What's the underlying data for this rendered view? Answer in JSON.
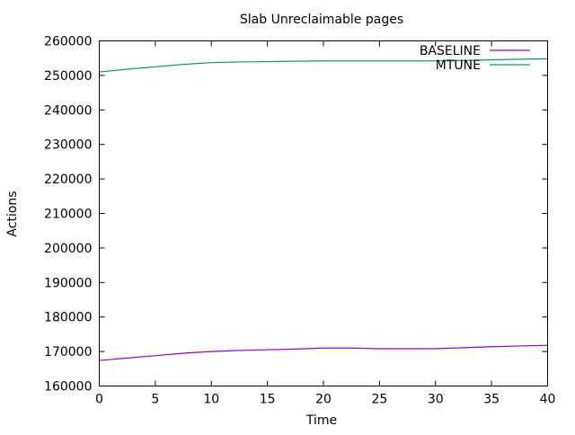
{
  "chart_data": {
    "type": "line",
    "title": "Slab Unreclaimable pages",
    "xlabel": "Time",
    "ylabel": "Actions",
    "xlim": [
      0,
      40
    ],
    "ylim": [
      160000,
      260000
    ],
    "xticks": [
      0,
      5,
      10,
      15,
      20,
      25,
      30,
      35,
      40
    ],
    "yticks": [
      160000,
      170000,
      180000,
      190000,
      200000,
      210000,
      220000,
      230000,
      240000,
      250000,
      260000
    ],
    "grid": false,
    "legend_position": "top-right",
    "x": [
      0,
      2.5,
      5,
      7.5,
      10,
      12.5,
      15,
      17.5,
      20,
      22.5,
      25,
      27.5,
      30,
      32.5,
      35,
      37.5,
      40
    ],
    "series": [
      {
        "name": "BASELINE",
        "color": "#9400d3",
        "values": [
          167400,
          168100,
          168800,
          169500,
          170000,
          170300,
          170500,
          170700,
          171000,
          171000,
          170800,
          170800,
          170800,
          171100,
          171400,
          171600,
          171800
        ]
      },
      {
        "name": "MTUNE",
        "color": "#009e73",
        "values": [
          251000,
          251800,
          252500,
          253200,
          253700,
          253900,
          254000,
          254100,
          254200,
          254200,
          254200,
          254200,
          254200,
          254300,
          254500,
          254700,
          254800
        ]
      }
    ]
  }
}
